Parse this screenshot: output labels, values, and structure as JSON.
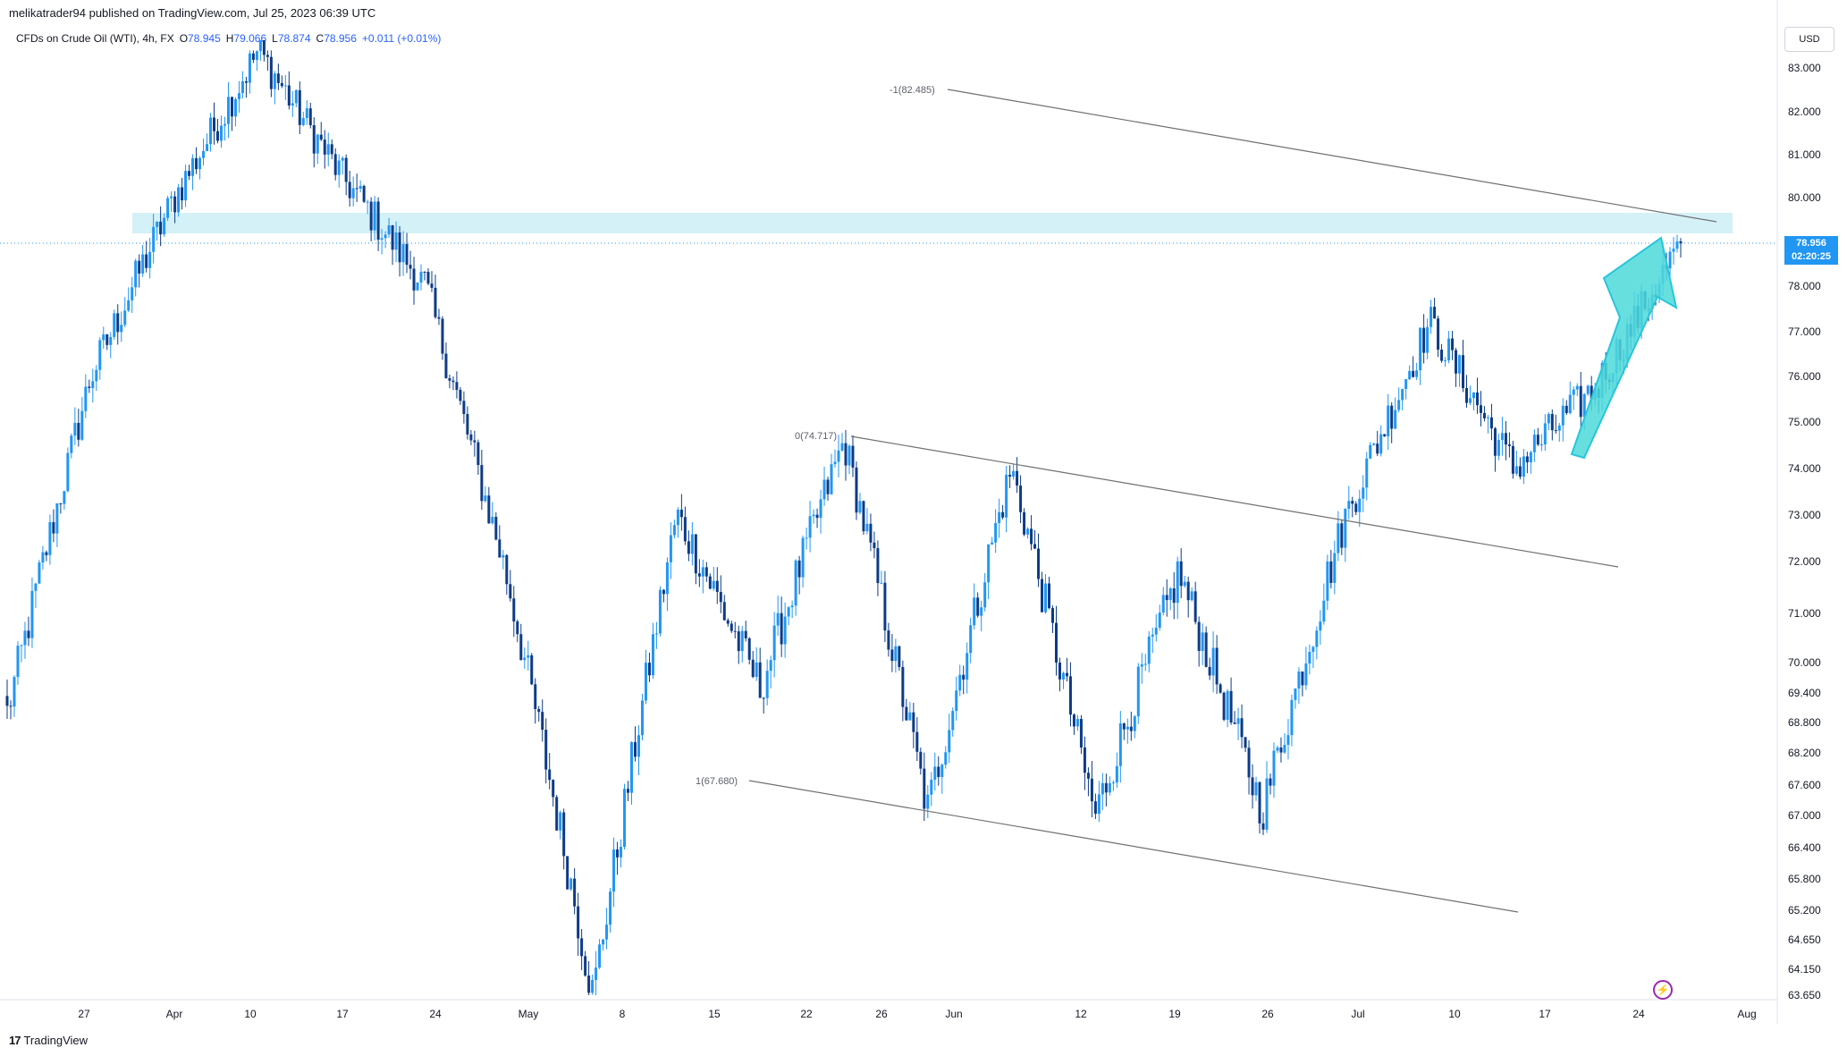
{
  "header": {
    "publisher_line": "melikatrader94 published on TradingView.com, Jul 25, 2023 06:39 UTC"
  },
  "symbol": {
    "name": "CFDs on Crude Oil (WTI), 4h, FX",
    "open_label": "O",
    "open": "78.945",
    "high_label": "H",
    "high": "79.066",
    "low_label": "L",
    "low": "78.874",
    "close_label": "C",
    "close": "78.956",
    "change": "+0.011 (+0.01%)"
  },
  "price_axis": {
    "currency": "USD",
    "current_price": "78.956",
    "countdown": "02:20:25"
  },
  "drawings": {
    "fib_labels": [
      "-1(82.485)",
      "0(74.717)",
      "1(67.680)"
    ]
  },
  "footer": {
    "brand": "TradingView",
    "logo_mark": "17"
  },
  "colors": {
    "candle_up": "#2196f3",
    "candle_down": "#0d3b85",
    "zone_fill": "#d4f1f7",
    "arrow_fill": "#4dd9d9",
    "price_tag": "#2196f3",
    "trendline": "#707070"
  },
  "icons": [
    "bolt-icon",
    "tradingview-logo-icon"
  ],
  "chart_data": {
    "type": "candlestick",
    "timeframe": "4h",
    "title": "CFDs on Crude Oil (WTI), 4h, FX",
    "y_ticks": [
      "83.000",
      "82.000",
      "81.000",
      "80.000",
      "79.000",
      "78.000",
      "77.000",
      "76.000",
      "75.000",
      "74.000",
      "73.000",
      "72.000",
      "71.000",
      "70.000",
      "69.400",
      "68.800",
      "68.200",
      "67.600",
      "67.000",
      "66.400",
      "65.800",
      "65.200",
      "64.650",
      "64.150",
      "63.650"
    ],
    "x_ticks": [
      "27",
      "Apr",
      "10",
      "17",
      "24",
      "May",
      "8",
      "15",
      "22",
      "26",
      "Jun",
      "12",
      "19",
      "26",
      "Jul",
      "10",
      "17",
      "24",
      "Aug"
    ],
    "ylim": [
      63.65,
      83.4
    ],
    "last_price": 78.956,
    "resistance_zone": [
      79.0,
      79.5
    ],
    "anchors": [
      {
        "label": "start",
        "price": 69.0
      },
      {
        "label": "Mar 31",
        "price": 76.0
      },
      {
        "label": "Apr 3",
        "price": 80.0
      },
      {
        "label": "Apr 12",
        "price": 83.4
      },
      {
        "label": "Apr 18",
        "price": 80.5
      },
      {
        "label": "Apr 24",
        "price": 78.0
      },
      {
        "label": "May 2",
        "price": 71.5
      },
      {
        "label": "May 4",
        "price": 63.65
      },
      {
        "label": "May 10",
        "price": 73.0
      },
      {
        "label": "May 16",
        "price": 69.5
      },
      {
        "label": "May 24",
        "price": 74.6
      },
      {
        "label": "Jun 1",
        "price": 67.1
      },
      {
        "label": "Jun 5",
        "price": 74.0
      },
      {
        "label": "Jun 12",
        "price": 67.0
      },
      {
        "label": "Jun 21",
        "price": 71.8
      },
      {
        "label": "Jun 28",
        "price": 67.1
      },
      {
        "label": "Jul 10",
        "price": 73.0
      },
      {
        "label": "Jul 13",
        "price": 77.2
      },
      {
        "label": "Jul 17",
        "price": 74.0
      },
      {
        "label": "Jul 20",
        "price": 75.8
      },
      {
        "label": "Jul 25",
        "price": 78.956
      }
    ],
    "fib_channel": [
      {
        "level": "-1",
        "price": 82.485
      },
      {
        "level": "0",
        "price": 74.717
      },
      {
        "level": "1",
        "price": 67.68
      }
    ]
  }
}
